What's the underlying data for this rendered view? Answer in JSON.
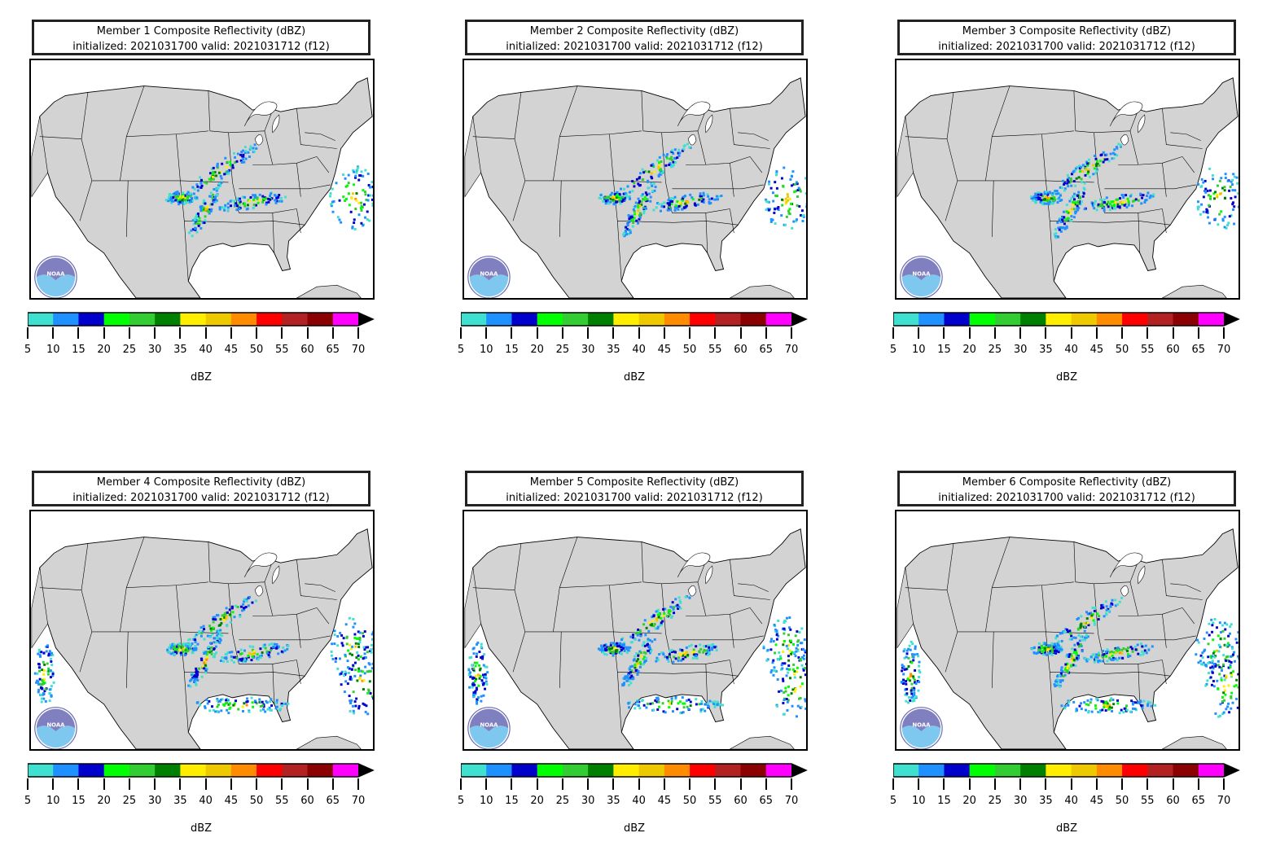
{
  "panels": [
    {
      "title": "Member 1 Composite Reflectivity (dBZ)",
      "subtitle": "initialized: 2021031700 valid: 2021031712 (f12)"
    },
    {
      "title": "Member 2 Composite Reflectivity (dBZ)",
      "subtitle": "initialized: 2021031700 valid: 2021031712 (f12)"
    },
    {
      "title": "Member 3 Composite Reflectivity (dBZ)",
      "subtitle": "initialized: 2021031700 valid: 2021031712 (f12)"
    },
    {
      "title": "Member 4 Composite Reflectivity (dBZ)",
      "subtitle": "initialized: 2021031700 valid: 2021031712 (f12)"
    },
    {
      "title": "Member 5 Composite Reflectivity (dBZ)",
      "subtitle": "initialized: 2021031700 valid: 2021031712 (f12)"
    },
    {
      "title": "Member 6 Composite Reflectivity (dBZ)",
      "subtitle": "initialized: 2021031700 valid: 2021031712 (f12)"
    }
  ],
  "colorbar": {
    "ticks": [
      "5",
      "10",
      "15",
      "20",
      "25",
      "30",
      "35",
      "40",
      "45",
      "50",
      "55",
      "60",
      "65",
      "70"
    ],
    "colors": [
      "#40E0D0",
      "#1E90FF",
      "#0000CD",
      "#00FF00",
      "#32CD32",
      "#008000",
      "#FFEE00",
      "#EEC900",
      "#FF8C00",
      "#FF0000",
      "#B22222",
      "#8B0000",
      "#FF00FF"
    ],
    "unit": "dBZ"
  },
  "logo": {
    "text": "NOAA",
    "icon": "noaa-logo-icon"
  }
}
